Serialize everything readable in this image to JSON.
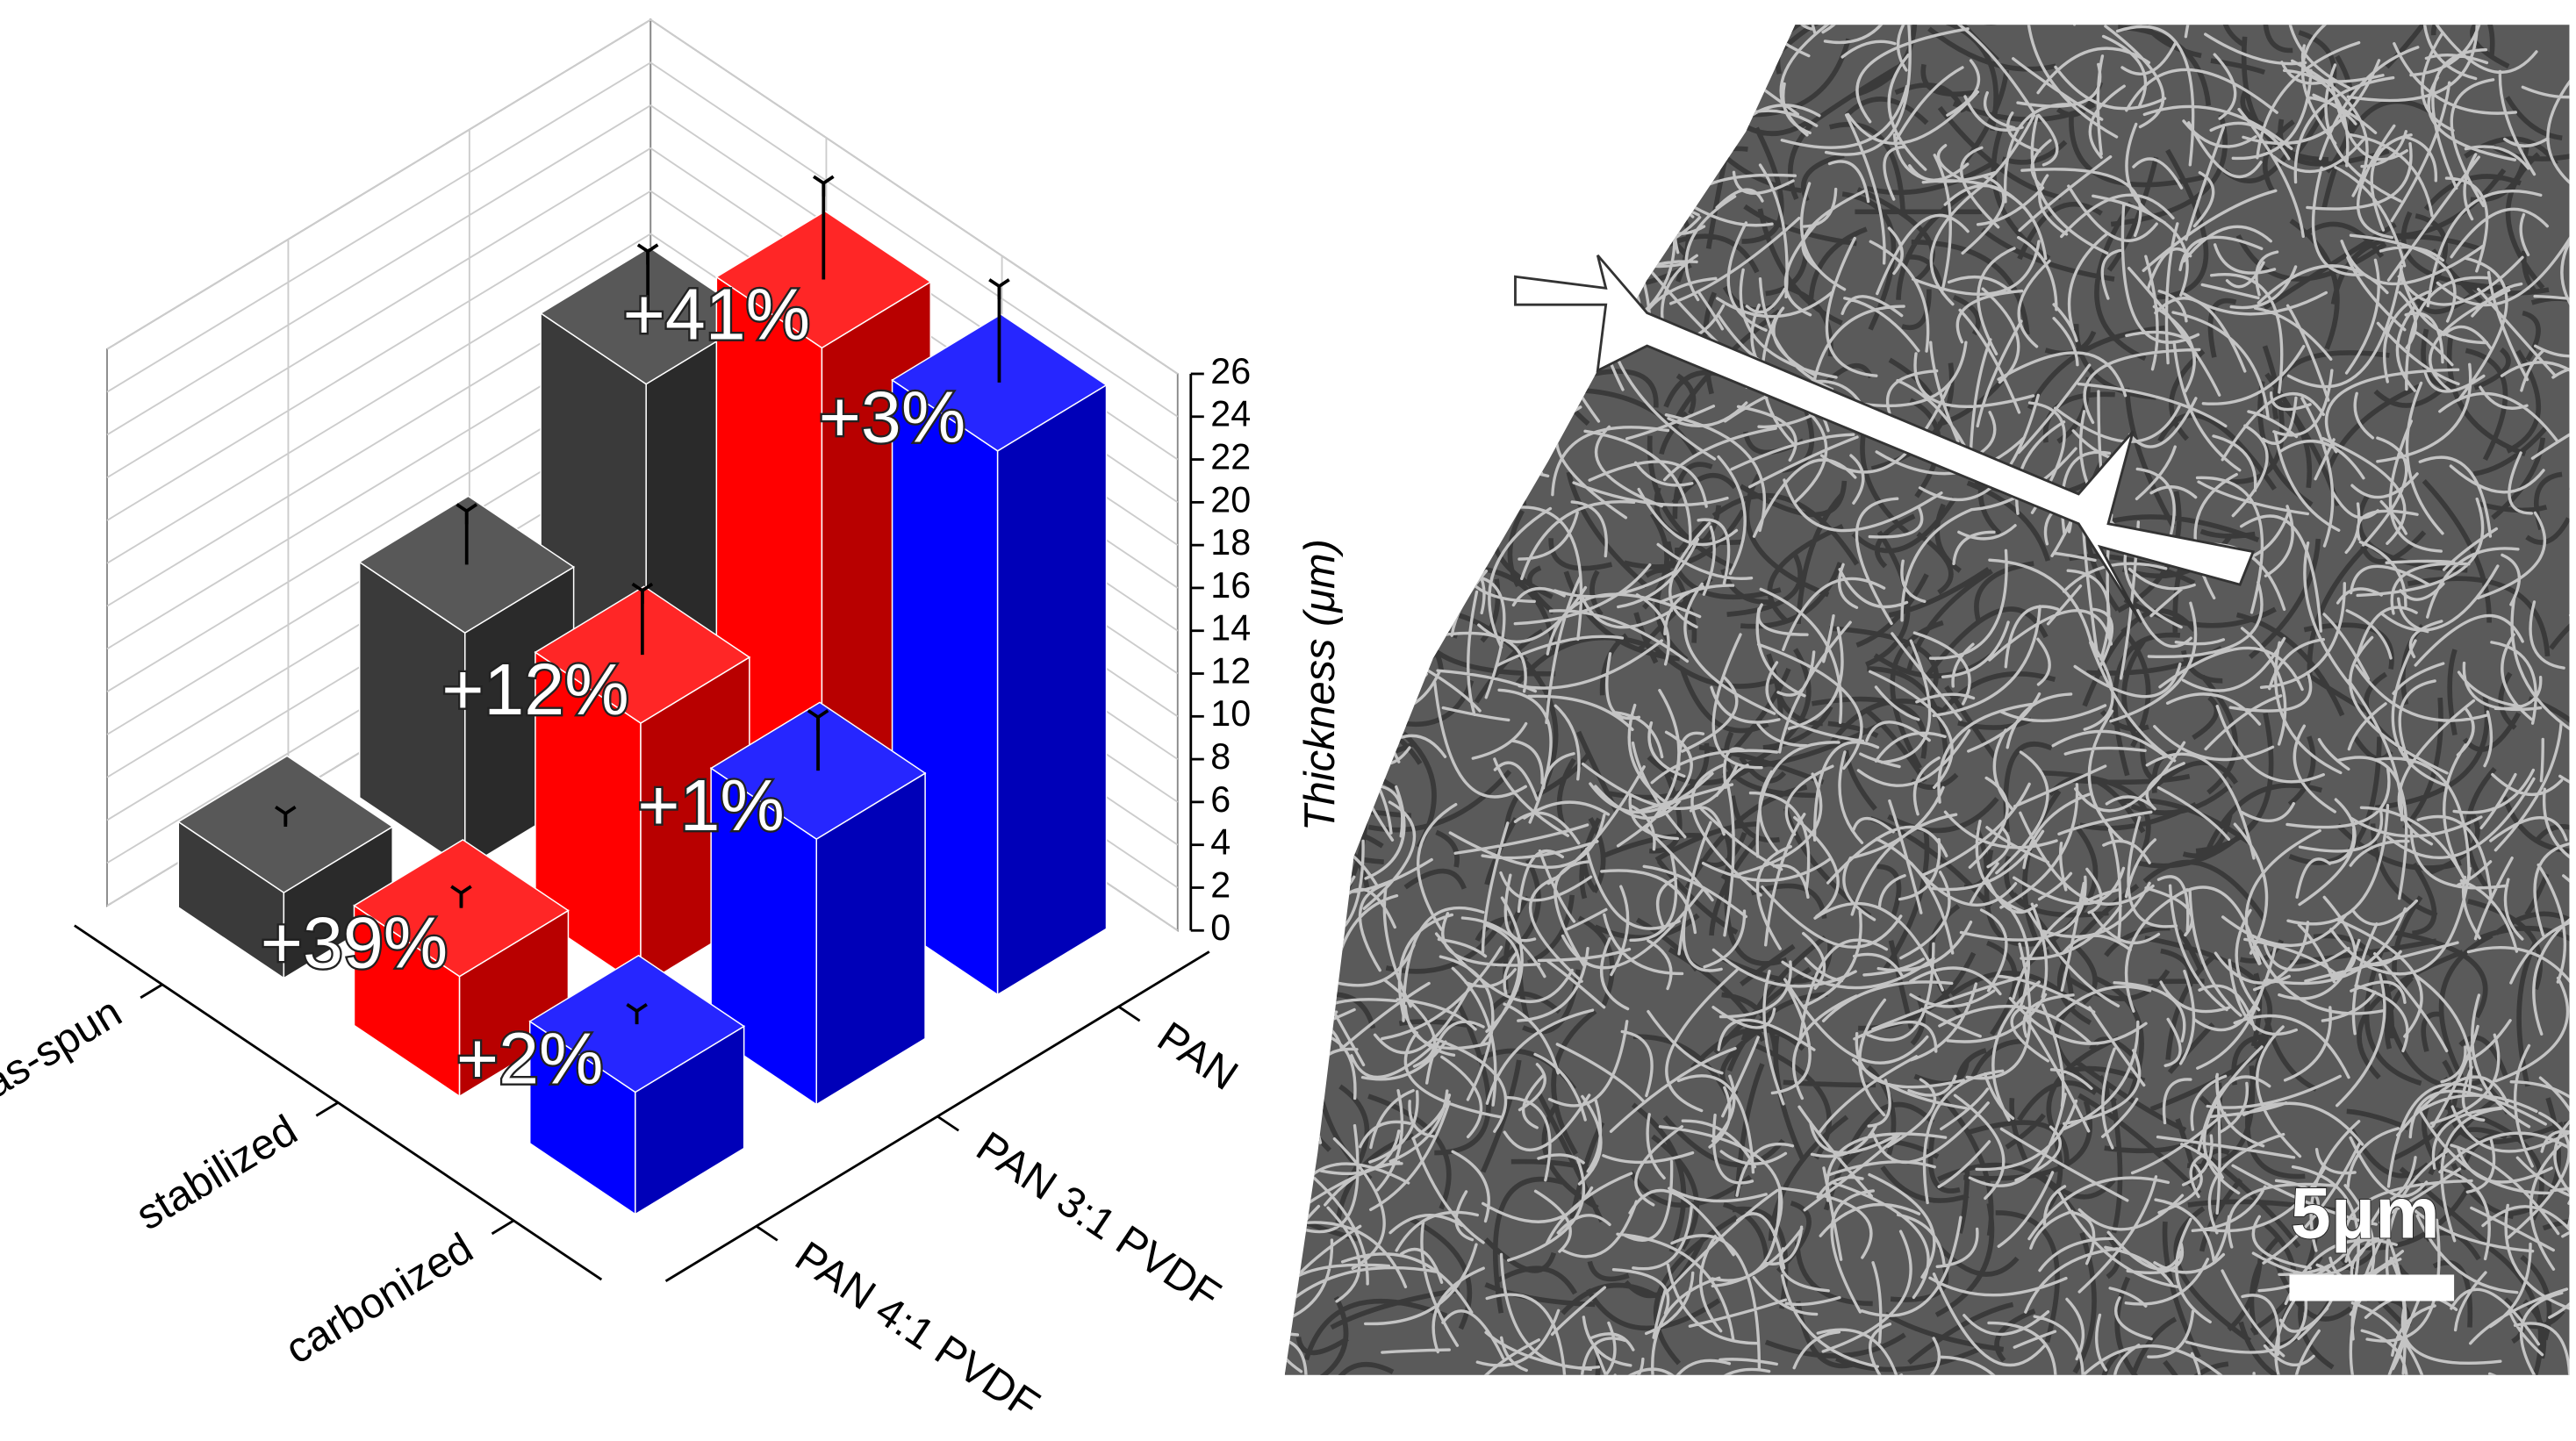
{
  "chart_data": {
    "type": "bar3d",
    "categories": [
      "PAN",
      "PAN 3:1 PVDF",
      "PAN 4:1 PVDF"
    ],
    "series": [
      {
        "name": "as-spun",
        "color": "#3a3a3a",
        "values": [
          17.5,
          11,
          4
        ],
        "errors": [
          3,
          2.5,
          0.5
        ]
      },
      {
        "name": "stabilized",
        "color": "#ff0000",
        "values": [
          24.7,
          12.3,
          5.6
        ],
        "errors": [
          4.5,
          3,
          0.7
        ],
        "annotations": [
          "+41%",
          "+12%",
          "+39%"
        ]
      },
      {
        "name": "carbonized",
        "color": "#0000ff",
        "values": [
          25.4,
          12.4,
          5.7
        ],
        "errors": [
          4.5,
          2.5,
          0.6
        ],
        "annotations": [
          "+3%",
          "+1%",
          "+2%"
        ]
      }
    ],
    "ylabel": "Thickness (μm)",
    "ylim": [
      0,
      26
    ],
    "yticks": [
      0,
      2,
      4,
      6,
      8,
      10,
      12,
      14,
      16,
      18,
      20,
      22,
      24,
      26
    ],
    "grid": true
  },
  "image": {
    "scale_bar": "5μm"
  }
}
